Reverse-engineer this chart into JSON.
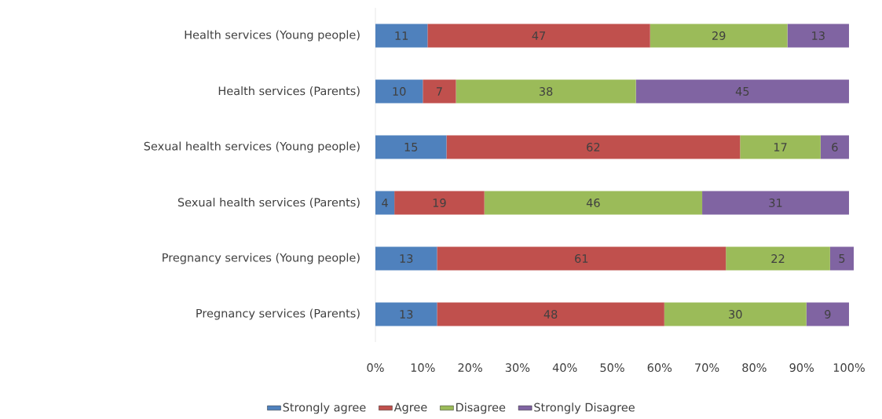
{
  "chart_data": {
    "type": "bar",
    "orientation": "horizontal",
    "stacked": true,
    "data_labels": true,
    "legend": "bottom",
    "grid": false,
    "categories": [
      "Health services (Young people)",
      "Health services (Parents)",
      "Sexual health services (Young people)",
      "Sexual health services (Parents)",
      "Pregnancy services (Young people)",
      "Pregnancy services (Parents)"
    ],
    "series": [
      {
        "name": "Strongly agree",
        "color": "#4f81bd",
        "values": [
          11,
          10,
          15,
          4,
          13,
          13
        ]
      },
      {
        "name": "Agree",
        "color": "#c0504d",
        "values": [
          47,
          7,
          62,
          19,
          61,
          48
        ]
      },
      {
        "name": "Disagree",
        "color": "#9bbb59",
        "values": [
          29,
          38,
          17,
          46,
          22,
          30
        ]
      },
      {
        "name": "Strongly Disagree",
        "color": "#8064a2",
        "values": [
          13,
          45,
          6,
          31,
          5,
          9
        ]
      }
    ],
    "xlim": [
      0,
      101
    ],
    "xticks": [
      {
        "value": 0,
        "label": "0%"
      },
      {
        "value": 10,
        "label": "10%"
      },
      {
        "value": 20,
        "label": "20%"
      },
      {
        "value": 30,
        "label": "30%"
      },
      {
        "value": 40,
        "label": "40%"
      },
      {
        "value": 50,
        "label": "50%"
      },
      {
        "value": 60,
        "label": "60%"
      },
      {
        "value": 70,
        "label": "70%"
      },
      {
        "value": 80,
        "label": "80%"
      },
      {
        "value": 90,
        "label": "90%"
      },
      {
        "value": 100,
        "label": "100%"
      }
    ]
  }
}
